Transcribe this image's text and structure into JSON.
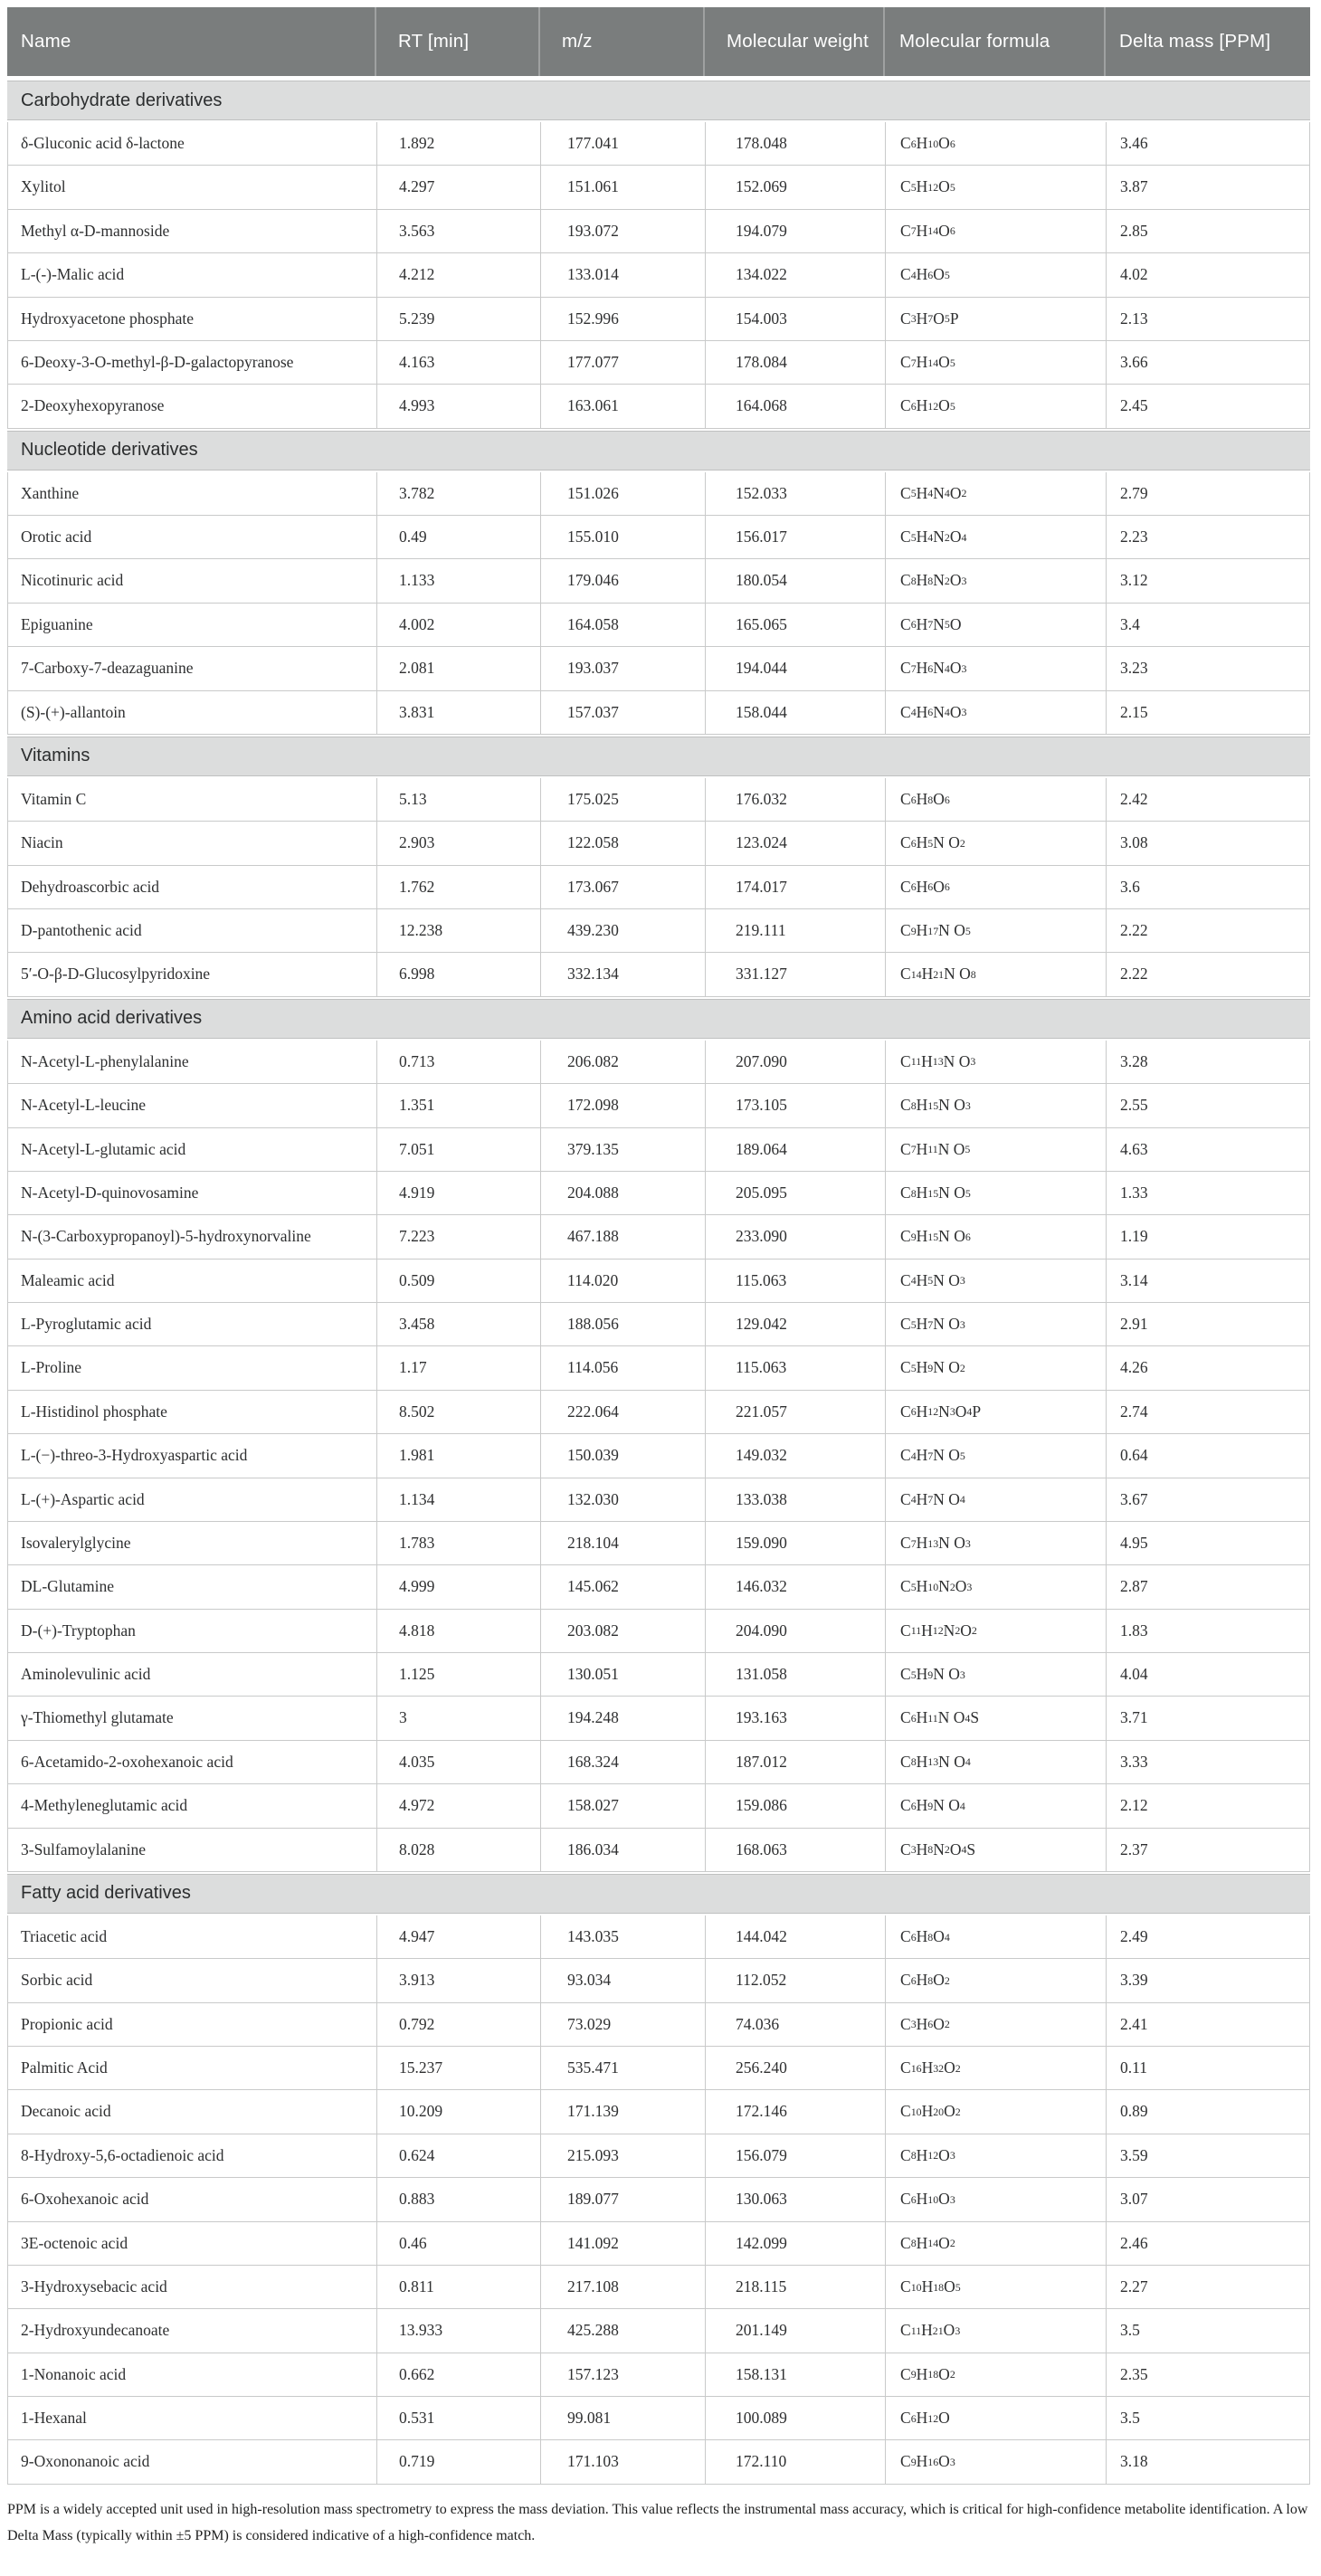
{
  "colors": {
    "header_bg": "#7a7d7d",
    "header_text": "#ffffff",
    "section_bg": "#dcdddd",
    "grid_line": "#c9caca",
    "body_text": "#2e2f30"
  },
  "table": {
    "columns": [
      "Name",
      "RT [min]",
      "m/z",
      "Molecular weight",
      "Molecular formula",
      "Delta mass [PPM]"
    ],
    "sections": [
      {
        "title": "Carbohydrate derivatives",
        "rows": [
          {
            "name": "δ-Gluconic acid δ-lactone",
            "rt": "1.892",
            "mz": "177.041",
            "mw": "178.048",
            "formula": "C6 H10 O6",
            "delta": "3.46"
          },
          {
            "name": "Xylitol",
            "rt": "4.297",
            "mz": "151.061",
            "mw": "152.069",
            "formula": "C5 H12 O5",
            "delta": "3.87"
          },
          {
            "name": "Methyl α-D-mannoside",
            "rt": "3.563",
            "mz": "193.072",
            "mw": "194.079",
            "formula": "C7 H14 O6",
            "delta": "2.85"
          },
          {
            "name": "L-(-)-Malic acid",
            "rt": "4.212",
            "mz": "133.014",
            "mw": "134.022",
            "formula": "C4 H6 O5",
            "delta": "4.02"
          },
          {
            "name": "Hydroxyacetone phosphate",
            "rt": "5.239",
            "mz": "152.996",
            "mw": "154.003",
            "formula": "C3 H7 O5 P",
            "delta": "2.13"
          },
          {
            "name": "6-Deoxy-3-O-methyl-β-D-galactopyranose",
            "rt": "4.163",
            "mz": "177.077",
            "mw": "178.084",
            "formula": "C7 H14 O5",
            "delta": "3.66"
          },
          {
            "name": "2-Deoxyhexopyranose",
            "rt": "4.993",
            "mz": "163.061",
            "mw": "164.068",
            "formula": "C6 H12 O5",
            "delta": "2.45"
          }
        ]
      },
      {
        "title": "Nucleotide derivatives",
        "rows": [
          {
            "name": "Xanthine",
            "rt": "3.782",
            "mz": "151.026",
            "mw": "152.033",
            "formula": "C5 H4 N4 O2",
            "delta": "2.79"
          },
          {
            "name": "Orotic acid",
            "rt": "0.49",
            "mz": "155.010",
            "mw": "156.017",
            "formula": "C5 H4 N2 O4",
            "delta": "2.23"
          },
          {
            "name": "Nicotinuric acid",
            "rt": "1.133",
            "mz": "179.046",
            "mw": "180.054",
            "formula": "C8 H8 N2 O3",
            "delta": "3.12"
          },
          {
            "name": "Epiguanine",
            "rt": "4.002",
            "mz": "164.058",
            "mw": "165.065",
            "formula": "C6 H7 N5 O",
            "delta": "3.4"
          },
          {
            "name": "7-Carboxy-7-deazaguanine",
            "rt": "2.081",
            "mz": "193.037",
            "mw": "194.044",
            "formula": "C7 H6 N4 O3",
            "delta": "3.23"
          },
          {
            "name": "(S)-(+)-allantoin",
            "rt": "3.831",
            "mz": "157.037",
            "mw": "158.044",
            "formula": "C4 H6 N4 O3",
            "delta": "2.15"
          }
        ]
      },
      {
        "title": "Vitamins",
        "rows": [
          {
            "name": "Vitamin C",
            "rt": "5.13",
            "mz": "175.025",
            "mw": "176.032",
            "formula": "C6 H8 O6",
            "delta": "2.42"
          },
          {
            "name": "Niacin",
            "rt": "2.903",
            "mz": "122.058",
            "mw": "123.024",
            "formula": "C6 H5 N O2",
            "delta": "3.08"
          },
          {
            "name": "Dehydroascorbic acid",
            "rt": "1.762",
            "mz": "173.067",
            "mw": "174.017",
            "formula": "C6 H6 O6",
            "delta": "3.6"
          },
          {
            "name": "D-pantothenic acid",
            "rt": "12.238",
            "mz": "439.230",
            "mw": "219.111",
            "formula": "C9 H17 N O5",
            "delta": "2.22"
          },
          {
            "name": "5′-O-β-D-Glucosylpyridoxine",
            "rt": "6.998",
            "mz": "332.134",
            "mw": "331.127",
            "formula": "C14 H21 N O8",
            "delta": "2.22"
          }
        ]
      },
      {
        "title": "Amino acid derivatives",
        "rows": [
          {
            "name": "N-Acetyl-L-phenylalanine",
            "rt": "0.713",
            "mz": "206.082",
            "mw": "207.090",
            "formula": "C11 H13 N O3",
            "delta": "3.28"
          },
          {
            "name": "N-Acetyl-L-leucine",
            "rt": "1.351",
            "mz": "172.098",
            "mw": "173.105",
            "formula": "C8 H15 N O3",
            "delta": "2.55"
          },
          {
            "name": "N-Acetyl-L-glutamic acid",
            "rt": "7.051",
            "mz": "379.135",
            "mw": "189.064",
            "formula": "C7 H11 N O5",
            "delta": "4.63"
          },
          {
            "name": "N-Acetyl-D-quinovosamine",
            "rt": "4.919",
            "mz": "204.088",
            "mw": "205.095",
            "formula": "C8 H15 N O5",
            "delta": "1.33"
          },
          {
            "name": "N-(3-Carboxypropanoyl)-5-hydroxynorvaline",
            "rt": "7.223",
            "mz": "467.188",
            "mw": "233.090",
            "formula": "C9 H15 N O6",
            "delta": "1.19"
          },
          {
            "name": "Maleamic acid",
            "rt": "0.509",
            "mz": "114.020",
            "mw": "115.063",
            "formula": "C4 H5 N O3",
            "delta": "3.14"
          },
          {
            "name": "L-Pyroglutamic acid",
            "rt": "3.458",
            "mz": "188.056",
            "mw": "129.042",
            "formula": "C5 H7 N O3",
            "delta": "2.91"
          },
          {
            "name": "L-Proline",
            "rt": "1.17",
            "mz": "114.056",
            "mw": "115.063",
            "formula": "C5 H9 N O2",
            "delta": "4.26"
          },
          {
            "name": "L-Histidinol phosphate",
            "rt": "8.502",
            "mz": "222.064",
            "mw": "221.057",
            "formula": "C6 H12 N3 O4 P",
            "delta": "2.74"
          },
          {
            "name": "L-(−)-threo-3-Hydroxyaspartic acid",
            "rt": "1.981",
            "mz": "150.039",
            "mw": "149.032",
            "formula": "C4 H7 N O5",
            "delta": "0.64"
          },
          {
            "name": "L-(+)-Aspartic acid",
            "rt": "1.134",
            "mz": "132.030",
            "mw": "133.038",
            "formula": "C4 H7 N O4",
            "delta": "3.67"
          },
          {
            "name": "Isovalerylglycine",
            "rt": "1.783",
            "mz": "218.104",
            "mw": "159.090",
            "formula": "C7 H13 N O3",
            "delta": "4.95"
          },
          {
            "name": "DL-Glutamine",
            "rt": "4.999",
            "mz": "145.062",
            "mw": "146.032",
            "formula": "C5 H10 N2 O3",
            "delta": "2.87"
          },
          {
            "name": "D-(+)-Tryptophan",
            "rt": "4.818",
            "mz": "203.082",
            "mw": "204.090",
            "formula": "C11 H12 N2 O2",
            "delta": "1.83"
          },
          {
            "name": "Aminolevulinic acid",
            "rt": "1.125",
            "mz": "130.051",
            "mw": "131.058",
            "formula": "C5 H9 N O3",
            "delta": "4.04"
          },
          {
            "name": "γ-Thiomethyl glutamate",
            "rt": "3",
            "mz": "194.248",
            "mw": "193.163",
            "formula": "C6 H11 N O4 S",
            "delta": "3.71"
          },
          {
            "name": "6-Acetamido-2-oxohexanoic acid",
            "rt": "4.035",
            "mz": "168.324",
            "mw": "187.012",
            "formula": "C8 H13 N O4",
            "delta": "3.33"
          },
          {
            "name": "4-Methyleneglutamic acid",
            "rt": "4.972",
            "mz": "158.027",
            "mw": "159.086",
            "formula": "C6 H9 N O4",
            "delta": "2.12"
          },
          {
            "name": "3-Sulfamoylalanine",
            "rt": "8.028",
            "mz": "186.034",
            "mw": "168.063",
            "formula": "C3 H8 N2 O4 S",
            "delta": "2.37"
          }
        ]
      },
      {
        "title": "Fatty acid derivatives",
        "rows": [
          {
            "name": "Triacetic acid",
            "rt": "4.947",
            "mz": "143.035",
            "mw": "144.042",
            "formula": "C6 H8 O4",
            "delta": "2.49"
          },
          {
            "name": "Sorbic acid",
            "rt": "3.913",
            "mz": "93.034",
            "mw": "112.052",
            "formula": "C6 H8 O2",
            "delta": "3.39"
          },
          {
            "name": "Propionic acid",
            "rt": "0.792",
            "mz": "73.029",
            "mw": "74.036",
            "formula": "C3 H6 O2",
            "delta": "2.41"
          },
          {
            "name": "Palmitic Acid",
            "rt": "15.237",
            "mz": "535.471",
            "mw": "256.240",
            "formula": "C16 H32 O2",
            "delta": "0.11"
          },
          {
            "name": "Decanoic acid",
            "rt": "10.209",
            "mz": "171.139",
            "mw": "172.146",
            "formula": "C10 H20 O2",
            "delta": "0.89"
          },
          {
            "name": "8-Hydroxy-5,6-octadienoic acid",
            "rt": "0.624",
            "mz": "215.093",
            "mw": "156.079",
            "formula": "C8 H12 O3",
            "delta": "3.59"
          },
          {
            "name": "6-Oxohexanoic acid",
            "rt": "0.883",
            "mz": "189.077",
            "mw": "130.063",
            "formula": "C6 H10 O3",
            "delta": "3.07"
          },
          {
            "name": "3E-octenoic acid",
            "rt": "0.46",
            "mz": "141.092",
            "mw": "142.099",
            "formula": "C8 H14 O2",
            "delta": "2.46"
          },
          {
            "name": "3-Hydroxysebacic acid",
            "rt": "0.811",
            "mz": "217.108",
            "mw": "218.115",
            "formula": "C10 H18 O5",
            "delta": "2.27"
          },
          {
            "name": "2-Hydroxyundecanoate",
            "rt": "13.933",
            "mz": "425.288",
            "mw": "201.149",
            "formula": "C11 H21 O3",
            "delta": "3.5"
          },
          {
            "name": "1-Nonanoic acid",
            "rt": "0.662",
            "mz": "157.123",
            "mw": "158.131",
            "formula": "C9 H18 O2",
            "delta": "2.35"
          },
          {
            "name": "1-Hexanal",
            "rt": "0.531",
            "mz": "99.081",
            "mw": "100.089",
            "formula": "C6 H12 O",
            "delta": "3.5"
          },
          {
            "name": "9-Oxononanoic acid",
            "rt": "0.719",
            "mz": "171.103",
            "mw": "172.110",
            "formula": "C9 H16 O3",
            "delta": "3.18"
          }
        ]
      }
    ],
    "footnote": "PPM is a widely accepted unit used in high-resolution mass spectrometry to express the mass deviation. This value reflects the instrumental mass accuracy, which is critical for high-confidence metabolite identification. A low Delta Mass (typically within ±5 PPM) is considered indicative of a high-confidence match."
  }
}
